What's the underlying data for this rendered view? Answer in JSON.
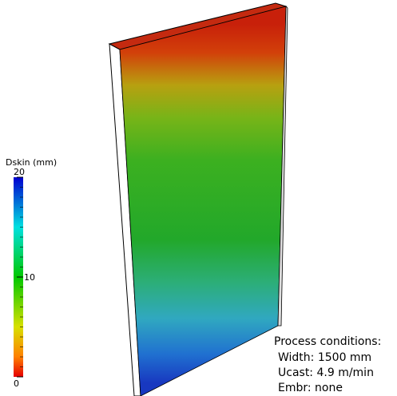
{
  "colorbar": {
    "title": "Dskin (mm)",
    "ticks": [
      "0",
      "10",
      "20"
    ]
  },
  "annotation": {
    "title": "Process conditions:",
    "lines": [
      "Width: 1500 mm",
      "Ucast: 4.9 m/min",
      "Embr:  none"
    ]
  }
}
